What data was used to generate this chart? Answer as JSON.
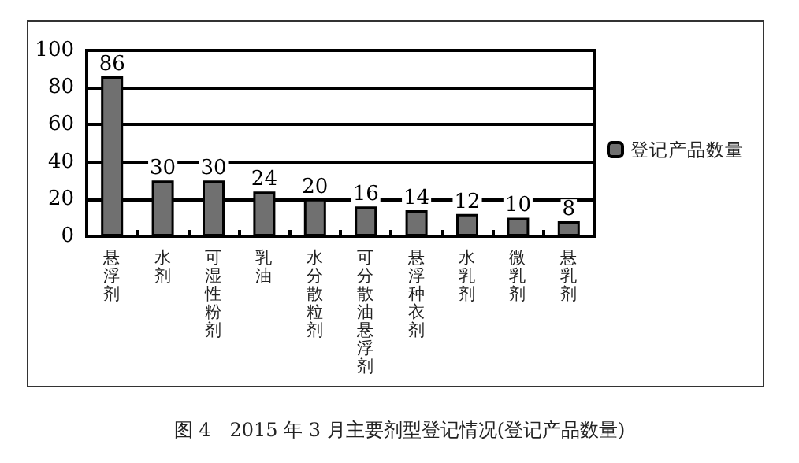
{
  "chart_data": {
    "type": "bar",
    "title": "图 4　2015 年 3 月主要剂型登记情况(登记产品数量)",
    "categories": [
      "悬浮剂",
      "水剂",
      "可湿性粉剂",
      "乳油",
      "水分散粒剂",
      "可分散油悬浮剂",
      "悬浮种衣剂",
      "水乳剂",
      "微乳剂",
      "悬乳剂"
    ],
    "series": [
      {
        "name": "登记产品数量",
        "color": "#707070",
        "values": [
          86,
          30,
          30,
          24,
          20,
          16,
          14,
          12,
          10,
          8
        ]
      }
    ],
    "ylim": [
      0,
      100
    ],
    "yticks": [
      0,
      20,
      40,
      60,
      80,
      100
    ],
    "grid": "y",
    "legend": "right",
    "data_labels": true
  }
}
